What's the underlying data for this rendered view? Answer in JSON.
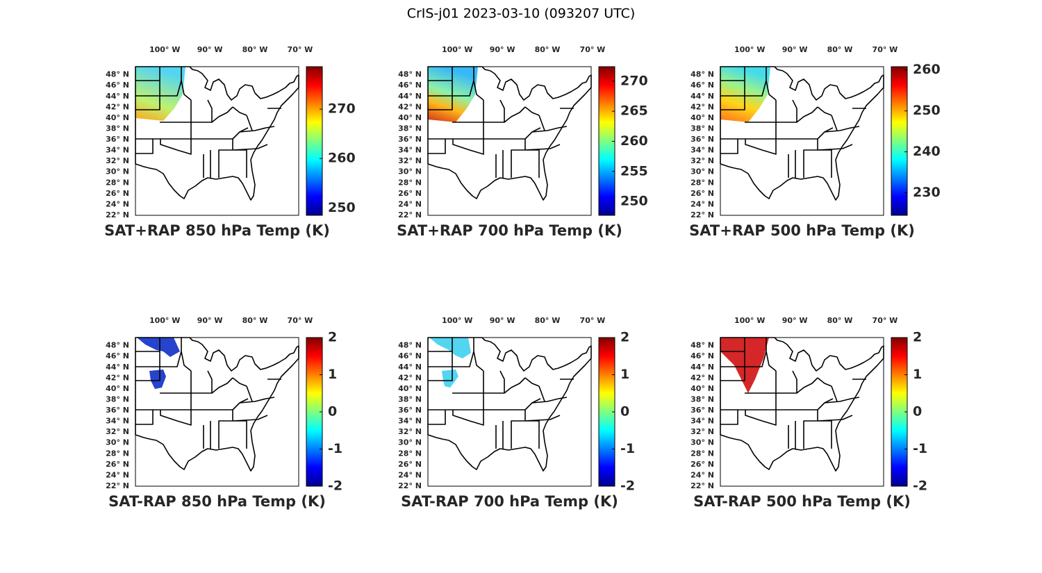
{
  "title": "CrIS-j01 2023-03-10 (093207 UTC)",
  "map": {
    "xlim": [
      -106.5,
      -70.3
    ],
    "ylim": [
      22,
      49.5
    ],
    "xticks": [
      {
        "value": -100,
        "label": "100° W"
      },
      {
        "value": -90,
        "label": "90° W"
      },
      {
        "value": -80,
        "label": "80° W"
      },
      {
        "value": -70,
        "label": "70° W"
      }
    ],
    "yticks": [
      {
        "value": 22,
        "label": "22° N"
      },
      {
        "value": 24,
        "label": "24° N"
      },
      {
        "value": 26,
        "label": "26° N"
      },
      {
        "value": 28,
        "label": "28° N"
      },
      {
        "value": 30,
        "label": "30° N"
      },
      {
        "value": 32,
        "label": "32° N"
      },
      {
        "value": 34,
        "label": "34° N"
      },
      {
        "value": 36,
        "label": "36° N"
      },
      {
        "value": 38,
        "label": "38° N"
      },
      {
        "value": 40,
        "label": "40° N"
      },
      {
        "value": 42,
        "label": "42° N"
      },
      {
        "value": 44,
        "label": "44° N"
      },
      {
        "value": 46,
        "label": "46° N"
      },
      {
        "value": 48,
        "label": "48° N"
      }
    ]
  },
  "panels": [
    {
      "title": "SAT+RAP 850 hPa Temp (K)",
      "clim": [
        248.5,
        278.6
      ],
      "cticks": [
        250,
        260,
        270
      ]
    },
    {
      "title": "SAT+RAP 700 hPa Temp (K)",
      "clim": [
        247.7,
        272.4
      ],
      "cticks": [
        250,
        255,
        260,
        265,
        270
      ]
    },
    {
      "title": "SAT+RAP 500 hPa Temp (K)",
      "clim": [
        224.5,
        260.8
      ],
      "cticks": [
        230,
        240,
        250,
        260
      ]
    },
    {
      "title": "SAT-RAP 850 hPa Temp (K)",
      "clim": [
        -2,
        2
      ],
      "cticks": [
        -2,
        -1,
        0,
        1,
        2
      ]
    },
    {
      "title": "SAT-RAP 700 hPa Temp (K)",
      "clim": [
        -2,
        2
      ],
      "cticks": [
        -2,
        -1,
        0,
        1,
        2
      ]
    },
    {
      "title": "SAT-RAP 500 hPa Temp (K)",
      "clim": [
        -2,
        2
      ],
      "cticks": [
        -2,
        -1,
        0,
        1,
        2
      ]
    }
  ]
}
